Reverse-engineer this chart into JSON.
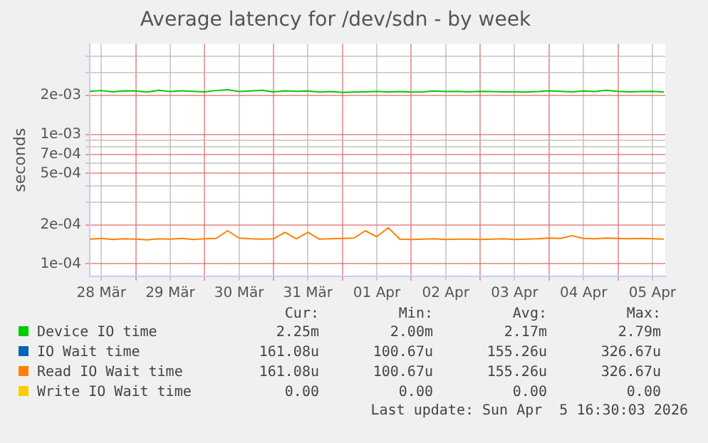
{
  "chart_data": {
    "type": "line",
    "title": "Average latency for /dev/sdn - by week",
    "ylabel": "seconds",
    "log": "y",
    "grid": true,
    "legend": "bottom",
    "marker": "none",
    "line_style": "solid",
    "x": [
      "2026-03-28T08:00",
      "2026-03-28T12:00",
      "2026-03-28T16:00",
      "2026-03-28T20:00",
      "2026-03-29T00:00",
      "2026-03-29T04:00",
      "2026-03-29T08:00",
      "2026-03-29T12:00",
      "2026-03-29T16:00",
      "2026-03-29T20:00",
      "2026-03-30T00:00",
      "2026-03-30T04:00",
      "2026-03-30T08:00",
      "2026-03-30T12:00",
      "2026-03-30T16:00",
      "2026-03-30T20:00",
      "2026-03-31T00:00",
      "2026-03-31T04:00",
      "2026-03-31T08:00",
      "2026-03-31T12:00",
      "2026-03-31T16:00",
      "2026-03-31T20:00",
      "2026-04-01T00:00",
      "2026-04-01T04:00",
      "2026-04-01T08:00",
      "2026-04-01T12:00",
      "2026-04-01T16:00",
      "2026-04-01T20:00",
      "2026-04-02T00:00",
      "2026-04-02T04:00",
      "2026-04-02T08:00",
      "2026-04-02T12:00",
      "2026-04-02T16:00",
      "2026-04-02T20:00",
      "2026-04-03T00:00",
      "2026-04-03T04:00",
      "2026-04-03T08:00",
      "2026-04-03T12:00",
      "2026-04-03T16:00",
      "2026-04-03T20:00",
      "2026-04-04T00:00",
      "2026-04-04T04:00",
      "2026-04-04T08:00",
      "2026-04-04T12:00",
      "2026-04-04T16:00",
      "2026-04-04T20:00",
      "2026-04-05T00:00",
      "2026-04-05T04:00",
      "2026-04-05T08:00",
      "2026-04-05T12:00",
      "2026-04-05T16:00"
    ],
    "xlim": [
      "2026-03-28T08:00",
      "2026-04-05T16:30"
    ],
    "xticks": [
      {
        "value": "2026-03-28T12:00",
        "label": "28 Mär"
      },
      {
        "value": "2026-03-29T00:00",
        "label": null
      },
      {
        "value": "2026-03-29T12:00",
        "label": "29 Mär"
      },
      {
        "value": "2026-03-30T00:00",
        "label": null
      },
      {
        "value": "2026-03-30T12:00",
        "label": "30 Mär"
      },
      {
        "value": "2026-03-31T00:00",
        "label": null
      },
      {
        "value": "2026-03-31T12:00",
        "label": "31 Mär"
      },
      {
        "value": "2026-04-01T00:00",
        "label": null
      },
      {
        "value": "2026-04-01T12:00",
        "label": "01 Apr"
      },
      {
        "value": "2026-04-02T00:00",
        "label": null
      },
      {
        "value": "2026-04-02T12:00",
        "label": "02 Apr"
      },
      {
        "value": "2026-04-03T00:00",
        "label": null
      },
      {
        "value": "2026-04-03T12:00",
        "label": "03 Apr"
      },
      {
        "value": "2026-04-04T00:00",
        "label": null
      },
      {
        "value": "2026-04-04T12:00",
        "label": "04 Apr"
      },
      {
        "value": "2026-04-05T00:00",
        "label": null
      },
      {
        "value": "2026-04-05T12:00",
        "label": "05 Apr"
      }
    ],
    "ylim": [
      8e-05,
      0.005
    ],
    "yticks": [
      {
        "value": 0.0001,
        "label": "1e-04"
      },
      {
        "value": 0.0002,
        "label": "2e-04"
      },
      {
        "value": 0.0003,
        "label": null
      },
      {
        "value": 0.0004,
        "label": null
      },
      {
        "value": 0.0005,
        "label": "5e-04"
      },
      {
        "value": 0.0006,
        "label": null
      },
      {
        "value": 0.0007,
        "label": "7e-04"
      },
      {
        "value": 0.0008,
        "label": null
      },
      {
        "value": 0.0009,
        "label": null
      },
      {
        "value": 0.001,
        "label": "1e-03"
      },
      {
        "value": 0.002,
        "label": "2e-03"
      },
      {
        "value": 0.003,
        "label": null
      },
      {
        "value": 0.004,
        "label": null
      }
    ],
    "series": [
      {
        "name": "Device IO time",
        "color": "#00cc00",
        "values": [
          0.00215,
          0.00218,
          0.00213,
          0.00217,
          0.00216,
          0.00212,
          0.00219,
          0.00214,
          0.00217,
          0.00215,
          0.00213,
          0.00218,
          0.00221,
          0.00214,
          0.00216,
          0.00219,
          0.00213,
          0.00217,
          0.00215,
          0.00216,
          0.00212,
          0.00214,
          0.00211,
          0.00212,
          0.00213,
          0.00215,
          0.00212,
          0.00214,
          0.00212,
          0.00213,
          0.00216,
          0.00214,
          0.00215,
          0.00213,
          0.00215,
          0.00214,
          0.00213,
          0.00213,
          0.00212,
          0.00214,
          0.00217,
          0.00215,
          0.00213,
          0.00216,
          0.00214,
          0.00219,
          0.00215,
          0.00213,
          0.00214,
          0.00215,
          0.00212
        ]
      },
      {
        "name": "IO Wait time",
        "color": "#0066b3",
        "values": [
          null,
          null,
          null,
          null,
          null,
          null,
          null,
          null,
          null,
          null,
          null,
          null,
          null,
          null,
          null,
          null,
          null,
          null,
          null,
          null,
          null,
          null,
          null,
          null,
          null,
          null,
          null,
          null,
          null,
          null,
          null,
          null,
          null,
          null,
          null,
          null,
          null,
          null,
          null,
          null,
          null,
          null,
          null,
          null,
          null,
          null,
          null,
          null,
          null,
          null,
          null
        ]
      },
      {
        "name": "Read IO Wait time",
        "color": "#ff8000",
        "values": [
          0.000155,
          0.000157,
          0.000154,
          0.000156,
          0.000155,
          0.000153,
          0.000156,
          0.000155,
          0.000157,
          0.000154,
          0.000156,
          0.000157,
          0.00018,
          0.000158,
          0.000156,
          0.000155,
          0.000156,
          0.000175,
          0.000156,
          0.000175,
          0.000155,
          0.000156,
          0.000157,
          0.000158,
          0.00018,
          0.000162,
          0.00019,
          0.000155,
          0.000154,
          0.000155,
          0.000156,
          0.000154,
          0.000155,
          0.000155,
          0.000154,
          0.000155,
          0.000156,
          0.000154,
          0.000155,
          0.000156,
          0.000158,
          0.000157,
          0.000165,
          0.000157,
          0.000156,
          0.000158,
          0.000157,
          0.000156,
          0.000157,
          0.000156,
          0.000155
        ]
      },
      {
        "name": "Write IO Wait time",
        "color": "#ffcc00",
        "values": [
          null,
          null,
          null,
          null,
          null,
          null,
          null,
          null,
          null,
          null,
          null,
          null,
          null,
          null,
          null,
          null,
          null,
          null,
          null,
          null,
          null,
          null,
          null,
          null,
          null,
          null,
          null,
          null,
          null,
          null,
          null,
          null,
          null,
          null,
          null,
          null,
          null,
          null,
          null,
          null,
          null,
          null,
          null,
          null,
          null,
          null,
          null,
          null,
          null,
          null,
          null
        ]
      }
    ],
    "annotations": [
      "Cur:",
      "Min:",
      "Avg:",
      "Max:",
      "2.25m",
      "2.00m",
      "2.17m",
      "2.79m",
      "161.08u",
      "100.67u",
      "155.26u",
      "326.67u",
      "161.08u",
      "100.67u",
      "155.26u",
      "326.67u",
      "0.00",
      "0.00",
      "0.00",
      "0.00",
      "Last update: Sun Apr  5 16:30:03 2026"
    ]
  }
}
